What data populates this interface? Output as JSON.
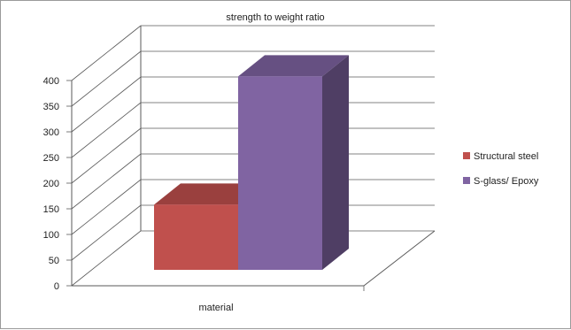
{
  "chart_data": {
    "type": "bar",
    "title": "strength to weight ratio",
    "categories": [
      "material"
    ],
    "series": [
      {
        "name": "Structural steel",
        "values": [
          127
        ],
        "color": "#c0504d"
      },
      {
        "name": "S-glass/ Epoxy",
        "values": [
          377
        ],
        "color": "#8064a2"
      }
    ],
    "ylim": [
      0,
      400
    ],
    "yticks": [
      0,
      50,
      100,
      150,
      200,
      250,
      300,
      350,
      400
    ],
    "xlabel": "",
    "ylabel": "",
    "grid": true,
    "legend": "right",
    "style": "3d-column"
  }
}
